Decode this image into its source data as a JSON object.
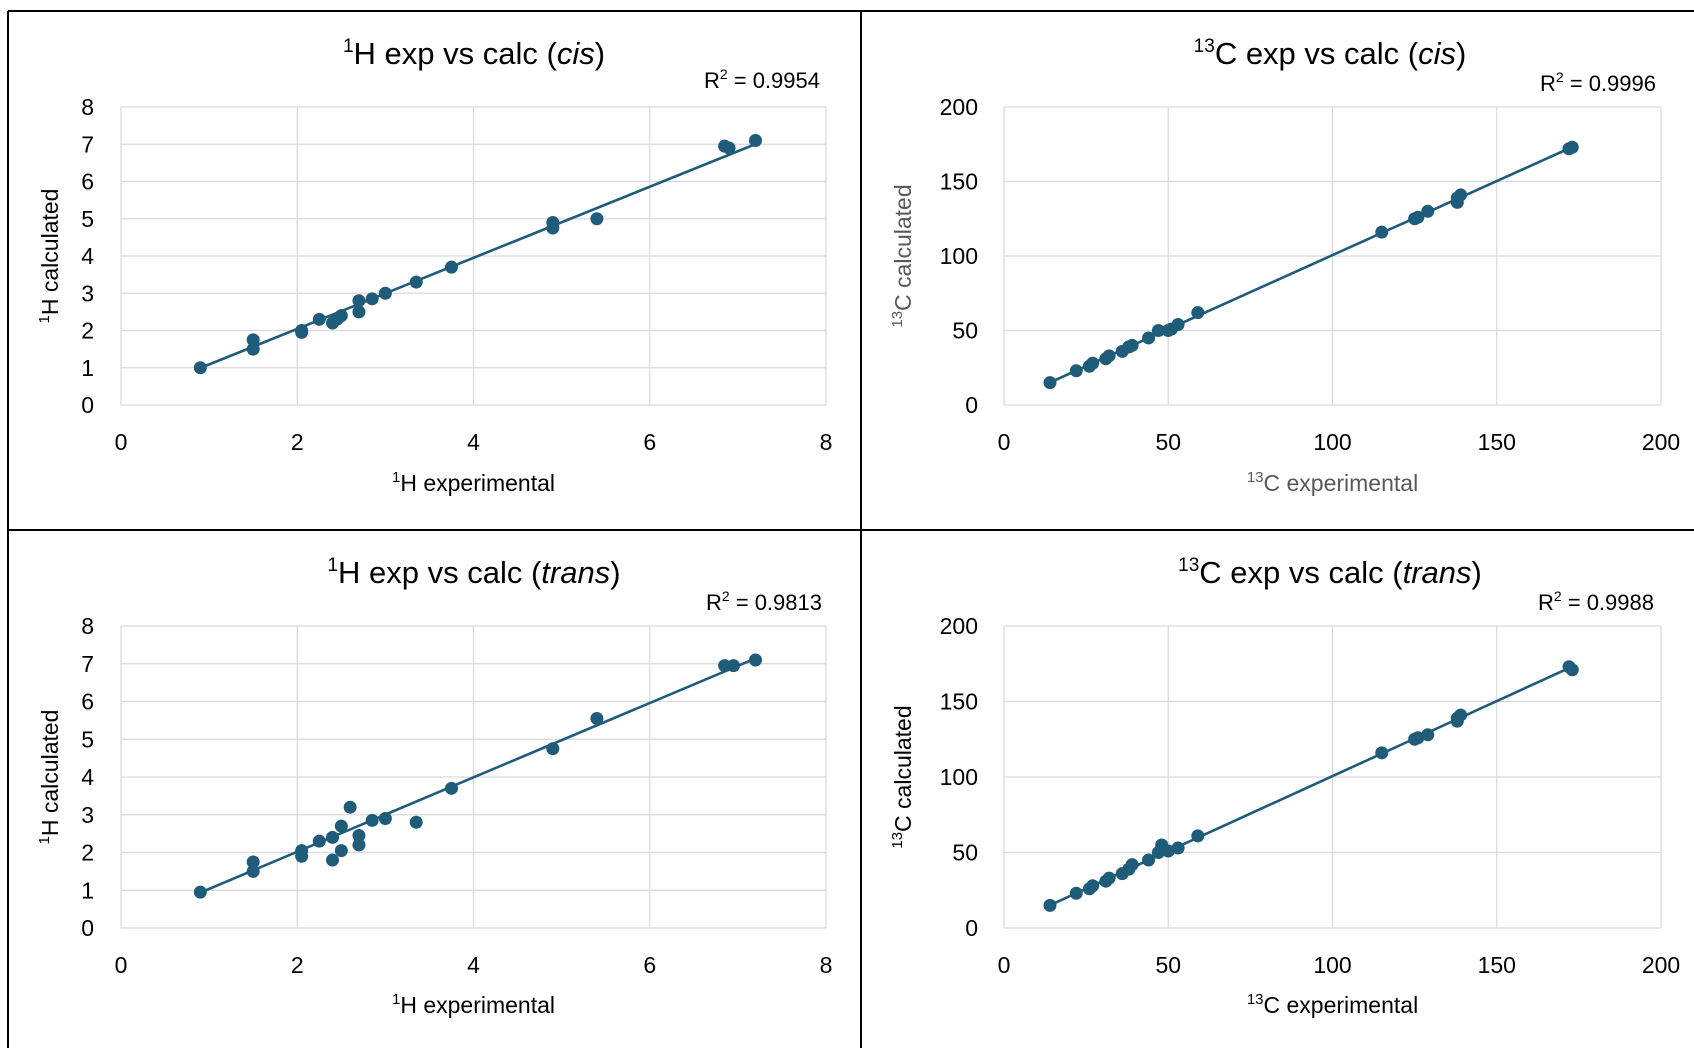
{
  "colors": {
    "marker": "#1f5c7a",
    "line": "#1f5c7a",
    "grid": "#d9d9d9",
    "text": "#000000",
    "text_muted": "#595959",
    "border": "#000000"
  },
  "chart_data": [
    {
      "type": "scatter",
      "title_base": "H exp vs calc (",
      "title_sup": "1",
      "title_italic": "cis",
      "title_close": ")",
      "r2_label": "R",
      "r2_sup": "2",
      "r2_value": " = 0.9954",
      "xlabel_sup": "1",
      "xlabel": "H experimental",
      "ylabel_sup": "1",
      "ylabel": "H calculated",
      "xlim": [
        0,
        8
      ],
      "ylim": [
        0,
        8
      ],
      "xticks": [
        "0",
        "2",
        "4",
        "6",
        "8"
      ],
      "yticks": [
        "0",
        "1",
        "2",
        "3",
        "4",
        "5",
        "6",
        "7",
        "8"
      ],
      "trendline": {
        "slope": 0.954,
        "intercept": 0.135,
        "x_range": [
          0.9,
          7.2
        ]
      },
      "grid": true,
      "points": [
        [
          0.9,
          1.0
        ],
        [
          1.5,
          1.75
        ],
        [
          1.5,
          1.5
        ],
        [
          2.05,
          2.0
        ],
        [
          2.05,
          1.95
        ],
        [
          2.25,
          2.3
        ],
        [
          2.4,
          2.2
        ],
        [
          2.45,
          2.3
        ],
        [
          2.5,
          2.4
        ],
        [
          2.7,
          2.8
        ],
        [
          2.7,
          2.5
        ],
        [
          2.85,
          2.85
        ],
        [
          3.0,
          3.0
        ],
        [
          3.35,
          3.3
        ],
        [
          3.75,
          3.7
        ],
        [
          4.9,
          4.9
        ],
        [
          4.9,
          4.75
        ],
        [
          5.4,
          5.0
        ],
        [
          6.85,
          6.95
        ],
        [
          6.9,
          6.9
        ],
        [
          7.2,
          7.1
        ]
      ]
    },
    {
      "type": "scatter",
      "title_base": "C exp vs calc (",
      "title_sup": "13",
      "title_italic": "cis",
      "title_close": ")",
      "r2_label": "R",
      "r2_sup": "2",
      "r2_value": " = 0.9996",
      "xlabel_sup": "13",
      "xlabel": "C experimental",
      "ylabel_sup": "13",
      "ylabel": "C calculated",
      "xlim": [
        0,
        200
      ],
      "ylim": [
        0,
        200
      ],
      "xticks": [
        "0",
        "50",
        "100",
        "150",
        "200"
      ],
      "yticks": [
        "0",
        "50",
        "100",
        "150",
        "200"
      ],
      "trendline": {
        "slope": 0.994,
        "intercept": 1.2,
        "x_range": [
          14,
          173
        ]
      },
      "grid": true,
      "points": [
        [
          14,
          15
        ],
        [
          22,
          23
        ],
        [
          26,
          26
        ],
        [
          27,
          28
        ],
        [
          31,
          31
        ],
        [
          32,
          33
        ],
        [
          36,
          36
        ],
        [
          38,
          39
        ],
        [
          39,
          40
        ],
        [
          44,
          45
        ],
        [
          47,
          50
        ],
        [
          50,
          50
        ],
        [
          51,
          51
        ],
        [
          53,
          54
        ],
        [
          59,
          62
        ],
        [
          115,
          116
        ],
        [
          125,
          125
        ],
        [
          126,
          126
        ],
        [
          129,
          130
        ],
        [
          138,
          136
        ],
        [
          138,
          139
        ],
        [
          139,
          141
        ],
        [
          172,
          172
        ],
        [
          173,
          173
        ]
      ]
    },
    {
      "type": "scatter",
      "title_base": "H exp vs calc (",
      "title_sup": "1",
      "title_italic": "trans",
      "title_close": ")",
      "r2_label": "R",
      "r2_sup": "2",
      "r2_value": " = 0.9813",
      "xlabel_sup": "1",
      "xlabel": "H experimental",
      "ylabel_sup": "1",
      "ylabel": "H calculated",
      "xlim": [
        0,
        8
      ],
      "ylim": [
        0,
        8
      ],
      "xticks": [
        "0",
        "2",
        "4",
        "6",
        "8"
      ],
      "yticks": [
        "0",
        "1",
        "2",
        "3",
        "4",
        "5",
        "6",
        "7",
        "8"
      ],
      "trendline": {
        "slope": 0.985,
        "intercept": 0.05,
        "x_range": [
          0.9,
          7.2
        ]
      },
      "grid": true,
      "points": [
        [
          0.9,
          0.95
        ],
        [
          1.5,
          1.75
        ],
        [
          1.5,
          1.5
        ],
        [
          2.05,
          2.05
        ],
        [
          2.05,
          1.9
        ],
        [
          2.25,
          2.3
        ],
        [
          2.4,
          2.4
        ],
        [
          2.4,
          1.8
        ],
        [
          2.5,
          2.7
        ],
        [
          2.5,
          2.05
        ],
        [
          2.6,
          3.2
        ],
        [
          2.7,
          2.45
        ],
        [
          2.7,
          2.2
        ],
        [
          2.85,
          2.85
        ],
        [
          3.0,
          2.9
        ],
        [
          3.35,
          2.8
        ],
        [
          3.75,
          3.7
        ],
        [
          4.9,
          4.75
        ],
        [
          5.4,
          5.55
        ],
        [
          6.85,
          6.95
        ],
        [
          6.95,
          6.95
        ],
        [
          7.2,
          7.1
        ]
      ]
    },
    {
      "type": "scatter",
      "title_base": "C exp vs calc (",
      "title_sup": "13",
      "title_italic": "trans",
      "title_close": ")",
      "r2_label": "R",
      "r2_sup": "2",
      "r2_value": " = 0.9988",
      "xlabel_sup": "13",
      "xlabel": "C experimental",
      "ylabel_sup": "13",
      "ylabel": "C calculated",
      "xlim": [
        0,
        200
      ],
      "ylim": [
        0,
        200
      ],
      "xticks": [
        "0",
        "50",
        "100",
        "150",
        "200"
      ],
      "yticks": [
        "0",
        "50",
        "100",
        "150",
        "200"
      ],
      "trendline": {
        "slope": 0.994,
        "intercept": 1.2,
        "x_range": [
          14,
          173
        ]
      },
      "grid": true,
      "points": [
        [
          14,
          15
        ],
        [
          22,
          23
        ],
        [
          26,
          26
        ],
        [
          27,
          28
        ],
        [
          31,
          31
        ],
        [
          32,
          33
        ],
        [
          36,
          36
        ],
        [
          38,
          39
        ],
        [
          39,
          42
        ],
        [
          44,
          45
        ],
        [
          47,
          50
        ],
        [
          48,
          55
        ],
        [
          50,
          51
        ],
        [
          53,
          53
        ],
        [
          59,
          61
        ],
        [
          115,
          116
        ],
        [
          125,
          125
        ],
        [
          126,
          126
        ],
        [
          129,
          128
        ],
        [
          138,
          137
        ],
        [
          138,
          139
        ],
        [
          139,
          141
        ],
        [
          172,
          173
        ],
        [
          173,
          171
        ]
      ]
    }
  ]
}
